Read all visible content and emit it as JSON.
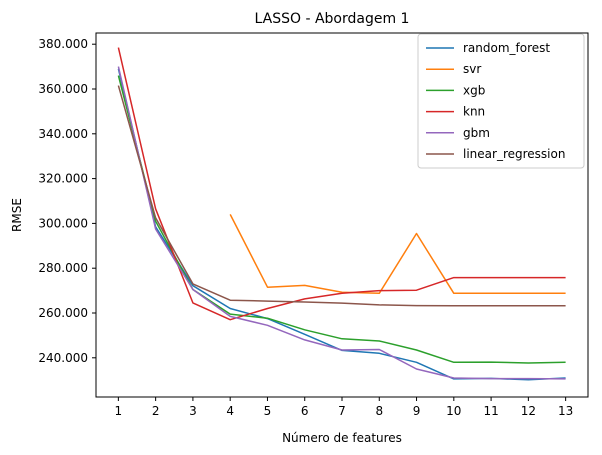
{
  "chart_data": {
    "type": "line",
    "title": "LASSO - Abordagem 1",
    "xlabel": "Número de features",
    "ylabel": "RMSE",
    "x": [
      1,
      2,
      3,
      4,
      5,
      6,
      7,
      8,
      9,
      10,
      11,
      12,
      13
    ],
    "xticks": [
      "1",
      "2",
      "3",
      "4",
      "5",
      "6",
      "7",
      "8",
      "9",
      "10",
      "11",
      "12",
      "13"
    ],
    "yticks": [
      {
        "value": 240000,
        "label": "240.000"
      },
      {
        "value": 260000,
        "label": "260.000"
      },
      {
        "value": 280000,
        "label": "280.000"
      },
      {
        "value": 300000,
        "label": "300.000"
      },
      {
        "value": 320000,
        "label": "320.000"
      },
      {
        "value": 340000,
        "label": "340.000"
      },
      {
        "value": 360000,
        "label": "360.000"
      },
      {
        "value": 380000,
        "label": "380.000"
      }
    ],
    "xlim": [
      0.4,
      13.6
    ],
    "ylim": [
      222500,
      385000
    ],
    "grid": false,
    "legend_position": "top-right",
    "series": [
      {
        "name": "random_forest",
        "color": "#1f77b4",
        "values": [
          369000,
          298500,
          272200,
          262000,
          257500,
          250500,
          243300,
          242000,
          238000,
          230600,
          230800,
          230200,
          231000
        ]
      },
      {
        "name": "svr",
        "color": "#ff7f0e",
        "values": [
          null,
          null,
          null,
          304000,
          271500,
          272300,
          269300,
          268800,
          295500,
          268800,
          268800,
          268800,
          268800
        ]
      },
      {
        "name": "xgb",
        "color": "#2ca02c",
        "values": [
          366000,
          301000,
          270500,
          259500,
          257700,
          252500,
          248500,
          247500,
          243500,
          238000,
          238100,
          237700,
          238000
        ]
      },
      {
        "name": "knn",
        "color": "#d62728",
        "values": [
          378500,
          306500,
          264500,
          257000,
          262000,
          266300,
          268800,
          270000,
          270200,
          275800,
          275800,
          275800,
          275800
        ]
      },
      {
        "name": "gbm",
        "color": "#9467bd",
        "values": [
          370000,
          297500,
          270500,
          258500,
          254500,
          248000,
          243500,
          243700,
          235000,
          231000,
          230700,
          230700,
          230600
        ]
      },
      {
        "name": "linear_regression",
        "color": "#8c564b",
        "values": [
          361500,
          302500,
          273000,
          265700,
          265300,
          264900,
          264400,
          263600,
          263300,
          263200,
          263200,
          263200,
          263200
        ]
      }
    ]
  }
}
